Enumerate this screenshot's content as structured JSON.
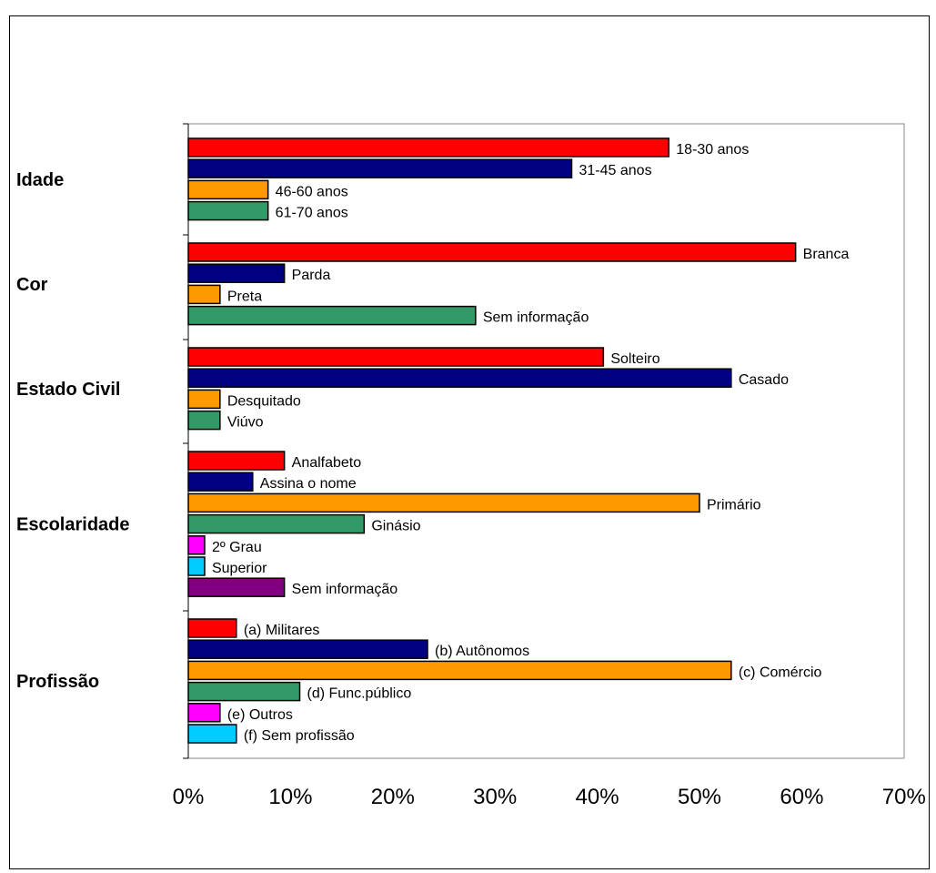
{
  "chart_data": {
    "type": "bar",
    "orientation": "horizontal",
    "title": "",
    "xlabel": "",
    "ylabel": "",
    "xlim": [
      0,
      70
    ],
    "x_ticks": [
      "0%",
      "10%",
      "20%",
      "30%",
      "40%",
      "50%",
      "60%",
      "70%"
    ],
    "grid": false,
    "legend": "none",
    "colors": {
      "red": "#ff0000",
      "navy": "#000080",
      "orange": "#ff9900",
      "green": "#339966",
      "magenta": "#ff00ff",
      "cyan": "#00ccff",
      "purple": "#800080"
    },
    "groups": [
      {
        "name": "Idade",
        "bars": [
          {
            "label": "18-30 anos",
            "value": 47,
            "color": "red"
          },
          {
            "label": "31-45 anos",
            "value": 37.5,
            "color": "navy"
          },
          {
            "label": "46-60 anos",
            "value": 7.8,
            "color": "orange"
          },
          {
            "label": "61-70 anos",
            "value": 7.8,
            "color": "green"
          }
        ]
      },
      {
        "name": "Cor",
        "bars": [
          {
            "label": "Branca",
            "value": 59.4,
            "color": "red"
          },
          {
            "label": "Parda",
            "value": 9.4,
            "color": "navy"
          },
          {
            "label": "Preta",
            "value": 3.1,
            "color": "orange"
          },
          {
            "label": "Sem informação",
            "value": 28.1,
            "color": "green"
          }
        ]
      },
      {
        "name": "Estado Civil",
        "bars": [
          {
            "label": "Solteiro",
            "value": 40.6,
            "color": "red"
          },
          {
            "label": "Casado",
            "value": 53.1,
            "color": "navy"
          },
          {
            "label": "Desquitado",
            "value": 3.1,
            "color": "orange"
          },
          {
            "label": "Viúvo",
            "value": 3.1,
            "color": "green"
          }
        ]
      },
      {
        "name": "Escolaridade",
        "bars": [
          {
            "label": "Analfabeto",
            "value": 9.4,
            "color": "red"
          },
          {
            "label": "Assina o nome",
            "value": 6.3,
            "color": "navy"
          },
          {
            "label": "Primário",
            "value": 50,
            "color": "orange"
          },
          {
            "label": "Ginásio",
            "value": 17.2,
            "color": "green"
          },
          {
            "label": "2º Grau",
            "value": 1.6,
            "color": "magenta"
          },
          {
            "label": "Superior",
            "value": 1.6,
            "color": "cyan"
          },
          {
            "label": "Sem informação",
            "value": 9.4,
            "color": "purple"
          }
        ]
      },
      {
        "name": "Profissão",
        "bars": [
          {
            "label": "(a) Militares",
            "value": 4.7,
            "color": "red"
          },
          {
            "label": "(b) Autônomos",
            "value": 23.4,
            "color": "navy"
          },
          {
            "label": "(c) Comércio",
            "value": 53.1,
            "color": "orange"
          },
          {
            "label": "(d) Func.público",
            "value": 10.9,
            "color": "green"
          },
          {
            "label": "(e) Outros",
            "value": 3.1,
            "color": "magenta"
          },
          {
            "label": "(f) Sem profissão",
            "value": 4.7,
            "color": "cyan"
          }
        ]
      }
    ]
  }
}
